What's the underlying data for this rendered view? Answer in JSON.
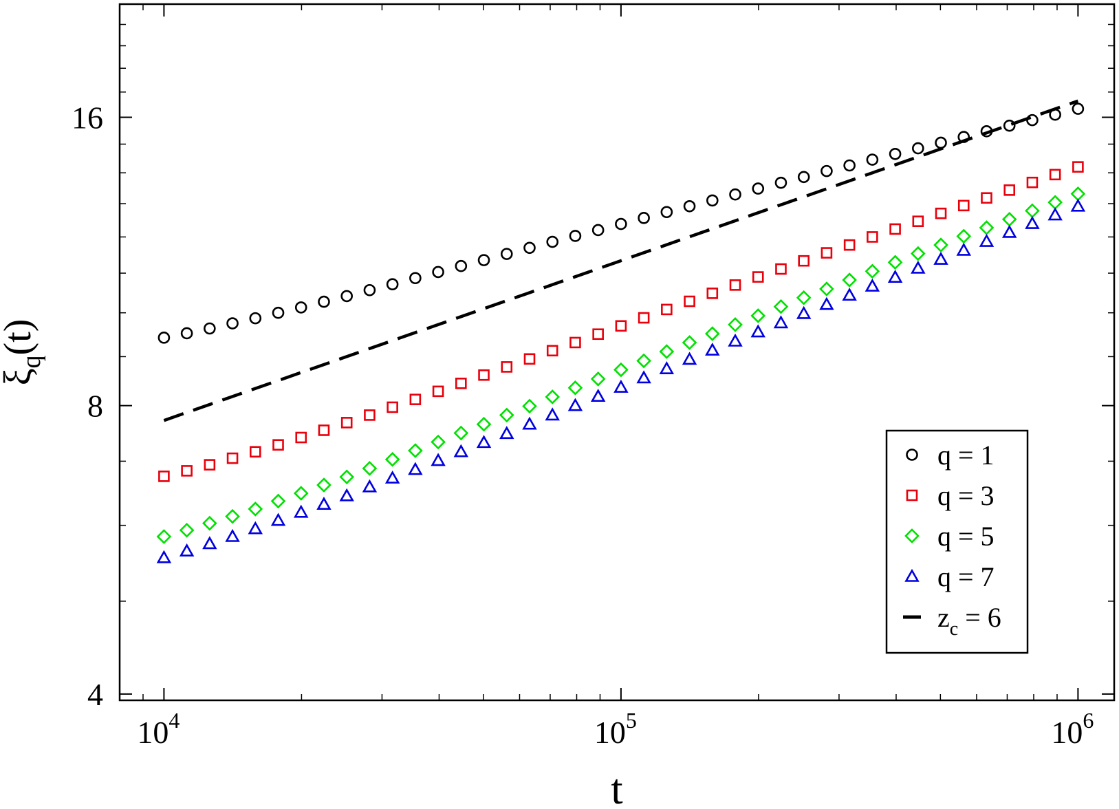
{
  "chart_data": {
    "type": "scatter",
    "xlabel": "t",
    "ylabel": {
      "main": "ξ",
      "sub": "q",
      "suffix": "(t)"
    },
    "xscale": "log",
    "yscale": "log",
    "xlim": [
      8000,
      1200000
    ],
    "ylim": [
      3.94,
      21.0
    ],
    "x_ticks": [
      {
        "value": 10000,
        "base": "10",
        "exp": "4"
      },
      {
        "value": 100000,
        "base": "10",
        "exp": "5"
      },
      {
        "value": 1000000,
        "base": "10",
        "exp": "6"
      }
    ],
    "y_ticks": [
      {
        "value": 4,
        "label": "4"
      },
      {
        "value": 8,
        "label": "8"
      },
      {
        "value": 16,
        "label": "16"
      }
    ],
    "y_minor_ticks": [
      5,
      6,
      7,
      9,
      10,
      11,
      12,
      13,
      14,
      15,
      17,
      18,
      19,
      20
    ],
    "x": [
      10000,
      11220,
      12589,
      14125,
      15849,
      17783,
      19953,
      22387,
      25119,
      28184,
      31623,
      35481,
      39811,
      44668,
      50119,
      56234,
      63096,
      70795,
      79433,
      89125,
      100000,
      112202,
      125893,
      141254,
      158489,
      177828,
      199526,
      223872,
      251189,
      281838,
      316228,
      354813,
      398107,
      446684,
      501187,
      562341,
      630957,
      707946,
      794328,
      891251,
      1000000
    ],
    "series": [
      {
        "name": "q = 1",
        "marker": "circle",
        "color": "#000000",
        "values": [
          9.42,
          9.52,
          9.63,
          9.75,
          9.87,
          10.0,
          10.13,
          10.27,
          10.41,
          10.56,
          10.71,
          10.87,
          11.03,
          11.19,
          11.35,
          11.52,
          11.69,
          11.86,
          12.03,
          12.2,
          12.38,
          12.56,
          12.74,
          12.92,
          13.1,
          13.29,
          13.48,
          13.67,
          13.86,
          14.06,
          14.25,
          14.45,
          14.65,
          14.85,
          15.05,
          15.26,
          15.47,
          15.68,
          15.89,
          16.1,
          16.33
        ]
      },
      {
        "name": "q = 3",
        "marker": "square",
        "color": "#e8000b",
        "values": [
          6.75,
          6.84,
          6.94,
          7.05,
          7.16,
          7.28,
          7.41,
          7.54,
          7.68,
          7.82,
          7.97,
          8.12,
          8.28,
          8.44,
          8.61,
          8.78,
          8.95,
          9.13,
          9.31,
          9.5,
          9.69,
          9.88,
          10.08,
          10.28,
          10.48,
          10.69,
          10.9,
          11.11,
          11.33,
          11.55,
          11.77,
          12.0,
          12.23,
          12.46,
          12.7,
          12.94,
          13.18,
          13.43,
          13.68,
          13.94,
          14.2
        ]
      },
      {
        "name": "q = 5",
        "marker": "diamond",
        "color": "#00e000",
        "values": [
          5.84,
          5.93,
          6.03,
          6.13,
          6.24,
          6.36,
          6.48,
          6.61,
          6.74,
          6.88,
          7.03,
          7.18,
          7.33,
          7.49,
          7.65,
          7.82,
          7.99,
          8.17,
          8.35,
          8.53,
          8.72,
          8.91,
          9.11,
          9.31,
          9.51,
          9.72,
          9.93,
          10.15,
          10.37,
          10.59,
          10.82,
          11.05,
          11.29,
          11.53,
          11.77,
          12.02,
          12.27,
          12.52,
          12.78,
          13.04,
          13.31
        ]
      },
      {
        "name": "q = 7",
        "marker": "triangle",
        "color": "#0000e0",
        "values": [
          5.55,
          5.64,
          5.74,
          5.84,
          5.95,
          6.07,
          6.19,
          6.31,
          6.44,
          6.58,
          6.72,
          6.86,
          7.01,
          7.16,
          7.32,
          7.48,
          7.65,
          7.82,
          8.0,
          8.18,
          8.36,
          8.55,
          8.74,
          8.94,
          9.14,
          9.34,
          9.55,
          9.76,
          9.98,
          10.2,
          10.43,
          10.66,
          10.89,
          11.13,
          11.37,
          11.62,
          11.87,
          12.13,
          12.39,
          12.65,
          12.92
        ]
      }
    ],
    "reference_line": {
      "name": "z_c = 6",
      "style": "dashed",
      "color": "#000000",
      "x": [
        10000,
        1000000
      ],
      "values": [
        7.72,
        16.64
      ]
    },
    "legend": {
      "placement": "bottom-right",
      "entries": [
        {
          "marker": "circle",
          "color": "#000000",
          "label": "q = 1"
        },
        {
          "marker": "square",
          "color": "#e8000b",
          "label": "q = 3"
        },
        {
          "marker": "diamond",
          "color": "#00e000",
          "label": "q = 5"
        },
        {
          "marker": "triangle",
          "color": "#0000e0",
          "label": "q = 7"
        },
        {
          "marker": "dash",
          "color": "#000000",
          "label_main": "z",
          "label_sub": "c",
          "label_tail": " = 6"
        }
      ]
    }
  }
}
